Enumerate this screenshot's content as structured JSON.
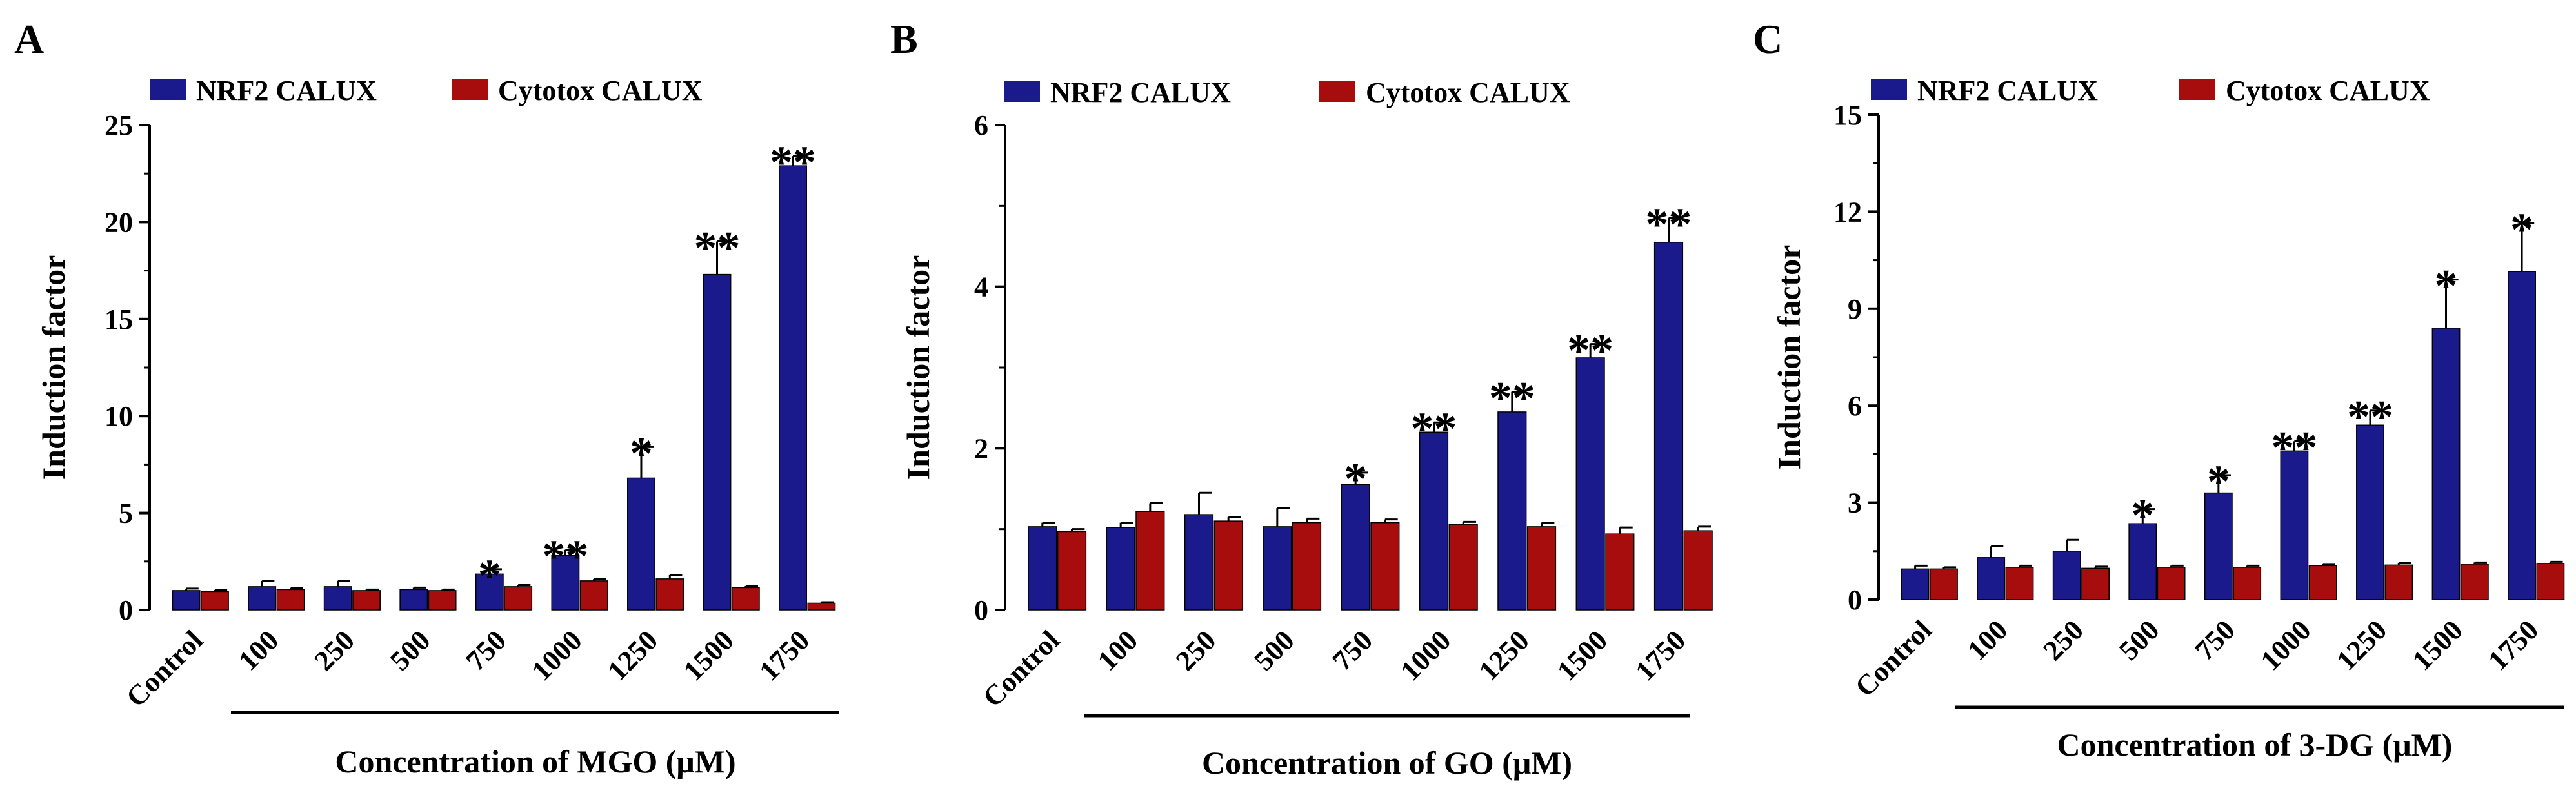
{
  "colors": {
    "nrf2": "#1a1a8c",
    "cytotox": "#a80d0d",
    "axis": "#000000"
  },
  "legend": {
    "nrf2": "NRF2 CALUX",
    "cytotox": "Cytotox CALUX"
  },
  "chart_data": [
    {
      "panel": "A",
      "type": "bar",
      "ylabel": "Induction factor",
      "xlabel": "Concentration of MGO (μM)",
      "ylim": [
        0,
        25
      ],
      "yticks": [
        "0",
        "5",
        "10",
        "15",
        "20",
        "25"
      ],
      "categories": [
        "Control",
        "100",
        "250",
        "500",
        "750",
        "1000",
        "1250",
        "1500",
        "1750"
      ],
      "series": [
        {
          "name": "NRF2 CALUX",
          "values": [
            1.0,
            1.2,
            1.2,
            1.05,
            1.85,
            2.8,
            6.8,
            17.3,
            22.9
          ],
          "errors": [
            0.1,
            0.3,
            0.3,
            0.1,
            0.25,
            0.3,
            1.6,
            1.7,
            0.5
          ]
        },
        {
          "name": "Cytotox CALUX",
          "values": [
            0.95,
            1.05,
            1.0,
            1.0,
            1.2,
            1.5,
            1.6,
            1.15,
            0.35
          ],
          "errors": [
            0.08,
            0.08,
            0.05,
            0.05,
            0.08,
            0.1,
            0.2,
            0.08,
            0.05
          ]
        }
      ],
      "significance": [
        "",
        "",
        "",
        "",
        "*",
        "**",
        "*",
        "**",
        "**"
      ]
    },
    {
      "panel": "B",
      "type": "bar",
      "ylabel": "Induction factor",
      "xlabel": "Concentration of GO (μM)",
      "ylim": [
        0,
        6
      ],
      "yticks": [
        "0",
        "2",
        "4",
        "6"
      ],
      "categories": [
        "Control",
        "100",
        "250",
        "500",
        "750",
        "1000",
        "1250",
        "1500",
        "1750"
      ],
      "series": [
        {
          "name": "NRF2 CALUX",
          "values": [
            1.03,
            1.02,
            1.18,
            1.03,
            1.55,
            2.2,
            2.45,
            3.12,
            4.55
          ],
          "errors": [
            0.05,
            0.06,
            0.27,
            0.23,
            0.15,
            0.12,
            0.25,
            0.17,
            0.3
          ]
        },
        {
          "name": "Cytotox CALUX",
          "values": [
            0.97,
            1.22,
            1.1,
            1.08,
            1.08,
            1.06,
            1.03,
            0.94,
            0.98
          ],
          "errors": [
            0.03,
            0.1,
            0.05,
            0.05,
            0.04,
            0.03,
            0.05,
            0.08,
            0.05
          ]
        }
      ],
      "significance": [
        "",
        "",
        "",
        "",
        "*",
        "**",
        "**",
        "**",
        "**"
      ]
    },
    {
      "panel": "C",
      "type": "bar",
      "ylabel": "Induction factor",
      "xlabel": "Concentration of 3-DG (μM)",
      "ylim": [
        0,
        15
      ],
      "yticks": [
        "0",
        "3",
        "6",
        "9",
        "12",
        "15"
      ],
      "categories": [
        "Control",
        "100",
        "250",
        "500",
        "750",
        "1000",
        "1250",
        "1500",
        "1750"
      ],
      "series": [
        {
          "name": "NRF2 CALUX",
          "values": [
            0.95,
            1.3,
            1.5,
            2.35,
            3.3,
            4.6,
            5.4,
            8.4,
            10.15
          ],
          "errors": [
            0.1,
            0.35,
            0.35,
            0.45,
            0.55,
            0.3,
            0.45,
            1.5,
            1.5
          ]
        },
        {
          "name": "Cytotox CALUX",
          "values": [
            0.95,
            1.0,
            0.97,
            1.0,
            1.0,
            1.05,
            1.07,
            1.1,
            1.12
          ],
          "errors": [
            0.05,
            0.05,
            0.05,
            0.05,
            0.05,
            0.05,
            0.07,
            0.05,
            0.05
          ]
        }
      ],
      "significance": [
        "",
        "",
        "",
        "*",
        "*",
        "**",
        "**",
        "*",
        "*"
      ]
    }
  ]
}
